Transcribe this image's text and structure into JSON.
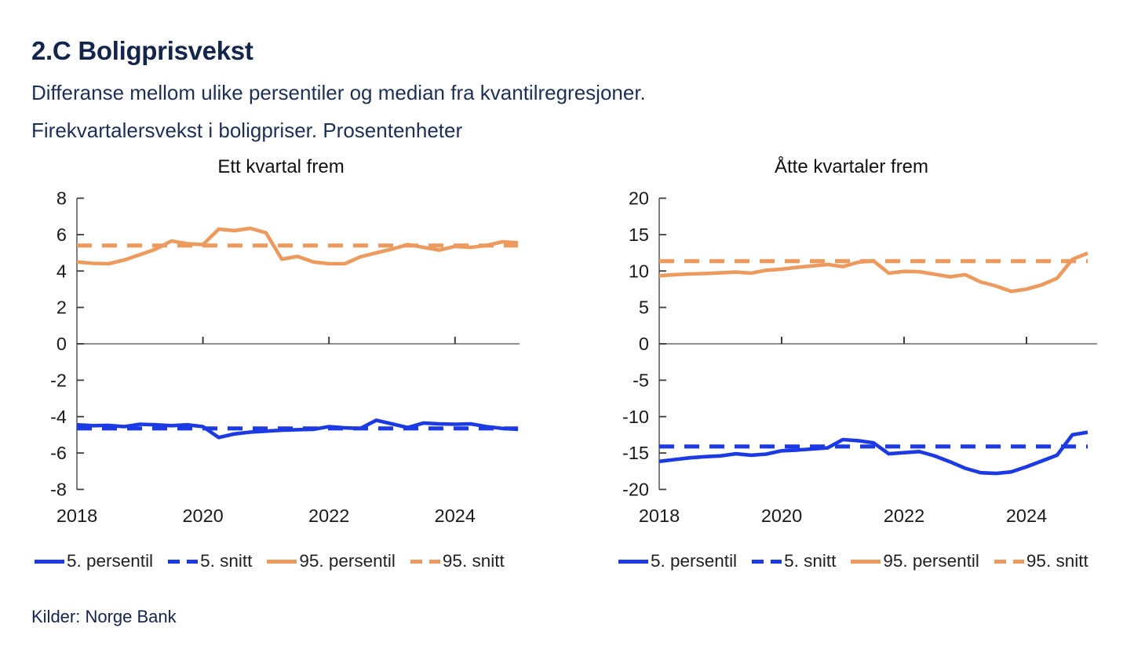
{
  "header": {
    "title": "2.C Boligprisvekst",
    "subtitle1": "Differanse mellom ulike persentiler og median fra kvantilregresjoner.",
    "subtitle2": "Firekvartalersvekst i boligpriser. Prosentenheter"
  },
  "source": "Kilder: Norge Bank",
  "colors": {
    "blue": "#1c3ae3",
    "orange": "#ec9a5e",
    "axis": "#7f7f7f",
    "tick_label": "#1a1a1a",
    "navy": "#14254c"
  },
  "legend": {
    "items": [
      {
        "label": "5. persentil",
        "color": "blue",
        "style": "solid"
      },
      {
        "label": "5. snitt",
        "color": "blue",
        "style": "dashed"
      },
      {
        "label": "95. persentil",
        "color": "orange",
        "style": "solid"
      },
      {
        "label": "95. snitt",
        "color": "orange",
        "style": "dashed"
      }
    ]
  },
  "chart_data": [
    {
      "type": "line",
      "title": "Ett kvartal frem",
      "x_start": 2018,
      "x_step": 0.25,
      "xticks": [
        2018,
        2020,
        2022,
        2024
      ],
      "yticks": [
        8,
        6,
        4,
        2,
        0,
        -2,
        -4,
        -6,
        -8
      ],
      "ylim": [
        -8,
        8
      ],
      "xlim": [
        2018,
        2025
      ],
      "grid": false,
      "legend_position": "bottom",
      "series": [
        {
          "name": "5. persentil",
          "color": "blue",
          "style": "solid",
          "values": [
            -4.45,
            -4.5,
            -4.48,
            -4.55,
            -4.42,
            -4.45,
            -4.5,
            -4.45,
            -4.55,
            -5.15,
            -4.95,
            -4.85,
            -4.8,
            -4.75,
            -4.72,
            -4.7,
            -4.55,
            -4.62,
            -4.65,
            -4.2,
            -4.4,
            -4.6,
            -4.35,
            -4.4,
            -4.42,
            -4.4,
            -4.55,
            -4.65,
            -4.7
          ]
        },
        {
          "name": "5. snitt",
          "color": "blue",
          "style": "dashed",
          "x": [
            2018,
            2025
          ],
          "values": [
            -4.65,
            -4.65
          ]
        },
        {
          "name": "95. persentil",
          "color": "orange",
          "style": "solid",
          "values": [
            4.5,
            4.42,
            4.4,
            4.6,
            4.9,
            5.2,
            5.65,
            5.5,
            5.45,
            6.3,
            6.22,
            6.35,
            6.1,
            4.65,
            4.8,
            4.5,
            4.4,
            4.4,
            4.78,
            5.0,
            5.2,
            5.45,
            5.3,
            5.15,
            5.35,
            5.3,
            5.4,
            5.6,
            5.55
          ]
        },
        {
          "name": "95. snitt",
          "color": "orange",
          "style": "dashed",
          "x": [
            2018,
            2025
          ],
          "values": [
            5.4,
            5.4
          ]
        }
      ]
    },
    {
      "type": "line",
      "title": "Åtte kvartaler frem",
      "x_start": 2018,
      "x_step": 0.25,
      "xticks": [
        2018,
        2020,
        2022,
        2024
      ],
      "yticks": [
        20,
        15,
        10,
        5,
        0,
        -5,
        -10,
        -15,
        -20
      ],
      "ylim": [
        -20,
        20
      ],
      "xlim": [
        2018,
        2025
      ],
      "grid": false,
      "legend_position": "bottom",
      "series": [
        {
          "name": "5. persentil",
          "color": "blue",
          "style": "solid",
          "values": [
            -16.15,
            -15.9,
            -15.65,
            -15.5,
            -15.4,
            -15.1,
            -15.3,
            -15.15,
            -14.7,
            -14.6,
            -14.45,
            -14.3,
            -13.15,
            -13.3,
            -13.6,
            -15.1,
            -14.95,
            -14.8,
            -15.4,
            -16.2,
            -17.1,
            -17.7,
            -17.8,
            -17.6,
            -16.9,
            -16.1,
            -15.3,
            -12.5,
            -12.15
          ]
        },
        {
          "name": "5. snitt",
          "color": "blue",
          "style": "dashed",
          "x": [
            2018,
            2025
          ],
          "values": [
            -14.1,
            -14.1
          ]
        },
        {
          "name": "95. persentil",
          "color": "orange",
          "style": "solid",
          "values": [
            9.35,
            9.5,
            9.6,
            9.65,
            9.75,
            9.85,
            9.7,
            10.1,
            10.25,
            10.5,
            10.7,
            10.9,
            10.6,
            11.2,
            11.4,
            9.7,
            9.95,
            9.9,
            9.55,
            9.2,
            9.5,
            8.5,
            7.95,
            7.2,
            7.5,
            8.1,
            9.0,
            11.6,
            12.45
          ]
        },
        {
          "name": "95. snitt",
          "color": "orange",
          "style": "dashed",
          "x": [
            2018,
            2025
          ],
          "values": [
            11.35,
            11.35
          ]
        }
      ]
    }
  ]
}
